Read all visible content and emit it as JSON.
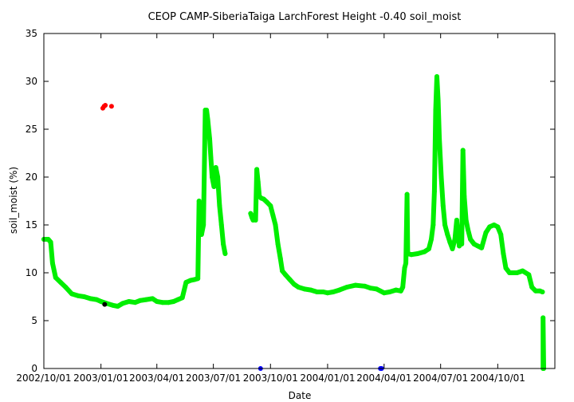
{
  "chart_data": {
    "type": "scatter",
    "title": "CEOP CAMP-SiberiaTaiga LarchForest Height -0.40 soil_moist",
    "xlabel": "Date",
    "ylabel": "soil_moist (%)",
    "x_range": [
      "2002-10-01",
      "2005-01-01"
    ],
    "ylim": [
      0,
      35
    ],
    "grid": false,
    "legend": "none",
    "x_ticks": [
      {
        "date": "2002-10-01",
        "label": "2002/10/01"
      },
      {
        "date": "2003-01-01",
        "label": "2003/01/01"
      },
      {
        "date": "2003-04-01",
        "label": "2003/04/01"
      },
      {
        "date": "2003-07-01",
        "label": "2003/07/01"
      },
      {
        "date": "2003-10-01",
        "label": "2003/10/01"
      },
      {
        "date": "2004-01-01",
        "label": "2004/01/01"
      },
      {
        "date": "2004-04-01",
        "label": "2004/04/01"
      },
      {
        "date": "2004-07-01",
        "label": "2004/07/01"
      },
      {
        "date": "2004-10-01",
        "label": "2004/10/01"
      }
    ],
    "y_ticks": [
      0,
      5,
      10,
      15,
      20,
      25,
      30,
      35
    ],
    "series": [
      {
        "color": "#00ee00",
        "segments": [
          [
            [
              "2002-10-01",
              13.5
            ],
            [
              "2002-10-08",
              13.5
            ],
            [
              "2002-10-12",
              13.2
            ],
            [
              "2002-10-15",
              11.0
            ],
            [
              "2002-10-20",
              9.5
            ],
            [
              "2002-10-28",
              9.0
            ],
            [
              "2002-11-05",
              8.5
            ],
            [
              "2002-11-15",
              7.8
            ],
            [
              "2002-11-25",
              7.6
            ],
            [
              "2002-12-05",
              7.5
            ],
            [
              "2002-12-15",
              7.3
            ],
            [
              "2002-12-25",
              7.2
            ],
            [
              "2003-01-01",
              7.0
            ],
            [
              "2003-01-10",
              6.8
            ],
            [
              "2003-01-20",
              6.6
            ],
            [
              "2003-01-28",
              6.5
            ],
            [
              "2003-02-05",
              6.8
            ],
            [
              "2003-02-15",
              7.0
            ],
            [
              "2003-02-25",
              6.9
            ],
            [
              "2003-03-05",
              7.1
            ],
            [
              "2003-03-15",
              7.2
            ],
            [
              "2003-03-25",
              7.3
            ],
            [
              "2003-04-01",
              7.0
            ],
            [
              "2003-04-10",
              6.9
            ],
            [
              "2003-04-20",
              6.9
            ],
            [
              "2003-04-28",
              7.0
            ],
            [
              "2003-05-05",
              7.2
            ],
            [
              "2003-05-12",
              7.4
            ],
            [
              "2003-05-18",
              9.0
            ],
            [
              "2003-05-25",
              9.2
            ],
            [
              "2003-06-01",
              9.3
            ],
            [
              "2003-06-06",
              9.4
            ],
            [
              "2003-06-08",
              17.5
            ],
            [
              "2003-06-10",
              15.0
            ],
            [
              "2003-06-12",
              14.0
            ],
            [
              "2003-06-15",
              15.0
            ],
            [
              "2003-06-18",
              27.0
            ],
            [
              "2003-06-20",
              27.0
            ],
            [
              "2003-06-22",
              26.0
            ],
            [
              "2003-06-25",
              24.0
            ],
            [
              "2003-06-27",
              22.0
            ],
            [
              "2003-06-29",
              20.0
            ],
            [
              "2003-07-02",
              19.0
            ],
            [
              "2003-07-05",
              21.0
            ],
            [
              "2003-07-08",
              20.0
            ],
            [
              "2003-07-11",
              17.0
            ],
            [
              "2003-07-14",
              15.0
            ],
            [
              "2003-07-17",
              13.0
            ],
            [
              "2003-07-20",
              12.0
            ]
          ],
          [
            [
              "2003-08-30",
              16.2
            ],
            [
              "2003-09-01",
              15.8
            ],
            [
              "2003-09-03",
              15.5
            ],
            [
              "2003-09-05",
              16.0
            ],
            [
              "2003-09-07",
              15.5
            ],
            [
              "2003-09-09",
              20.8
            ],
            [
              "2003-09-11",
              19.5
            ],
            [
              "2003-09-13",
              18.0
            ],
            [
              "2003-09-16",
              17.8
            ],
            [
              "2003-09-20",
              17.7
            ],
            [
              "2003-09-25",
              17.4
            ],
            [
              "2003-10-01",
              17.0
            ],
            [
              "2003-10-05",
              16.0
            ],
            [
              "2003-10-09",
              15.0
            ],
            [
              "2003-10-13",
              13.0
            ],
            [
              "2003-10-17",
              11.5
            ],
            [
              "2003-10-20",
              10.2
            ],
            [
              "2003-10-25",
              9.8
            ],
            [
              "2003-11-01",
              9.3
            ],
            [
              "2003-11-08",
              8.8
            ],
            [
              "2003-11-15",
              8.5
            ],
            [
              "2003-11-25",
              8.3
            ],
            [
              "2003-12-05",
              8.2
            ],
            [
              "2003-12-15",
              8.0
            ],
            [
              "2003-12-25",
              8.0
            ],
            [
              "2004-01-01",
              7.9
            ],
            [
              "2004-01-10",
              8.0
            ],
            [
              "2004-01-20",
              8.2
            ],
            [
              "2004-02-01",
              8.5
            ],
            [
              "2004-02-15",
              8.7
            ],
            [
              "2004-03-01",
              8.6
            ],
            [
              "2004-03-10",
              8.4
            ],
            [
              "2004-03-20",
              8.3
            ],
            [
              "2004-04-01",
              7.9
            ],
            [
              "2004-04-10",
              8.0
            ],
            [
              "2004-04-20",
              8.2
            ],
            [
              "2004-04-28",
              8.1
            ],
            [
              "2004-05-01",
              8.5
            ],
            [
              "2004-05-04",
              10.5
            ],
            [
              "2004-05-06",
              11.0
            ],
            [
              "2004-05-08",
              18.2
            ],
            [
              "2004-05-09",
              12.0
            ],
            [
              "2004-05-15",
              11.9
            ],
            [
              "2004-05-25",
              12.0
            ],
            [
              "2004-06-05",
              12.2
            ],
            [
              "2004-06-12",
              12.5
            ],
            [
              "2004-06-16",
              13.5
            ],
            [
              "2004-06-19",
              15.0
            ],
            [
              "2004-06-21",
              18.5
            ],
            [
              "2004-06-23",
              27.0
            ],
            [
              "2004-06-25",
              30.5
            ],
            [
              "2004-06-27",
              28.0
            ],
            [
              "2004-06-29",
              24.0
            ],
            [
              "2004-07-02",
              20.0
            ],
            [
              "2004-07-05",
              17.0
            ],
            [
              "2004-07-08",
              15.0
            ],
            [
              "2004-07-12",
              14.0
            ],
            [
              "2004-07-16",
              13.2
            ],
            [
              "2004-07-20",
              12.5
            ],
            [
              "2004-07-24",
              13.5
            ],
            [
              "2004-07-27",
              15.5
            ],
            [
              "2004-07-29",
              14.0
            ],
            [
              "2004-07-31",
              12.8
            ],
            [
              "2004-08-02",
              14.5
            ],
            [
              "2004-08-04",
              13.0
            ],
            [
              "2004-08-06",
              22.8
            ],
            [
              "2004-08-08",
              18.0
            ],
            [
              "2004-08-11",
              15.5
            ],
            [
              "2004-08-14",
              14.5
            ],
            [
              "2004-08-18",
              13.5
            ],
            [
              "2004-08-24",
              13.0
            ],
            [
              "2004-08-30",
              12.8
            ],
            [
              "2004-09-05",
              12.6
            ],
            [
              "2004-09-12",
              14.2
            ],
            [
              "2004-09-18",
              14.8
            ],
            [
              "2004-09-25",
              15.0
            ],
            [
              "2004-10-01",
              14.8
            ],
            [
              "2004-10-06",
              14.0
            ],
            [
              "2004-10-10",
              12.0
            ],
            [
              "2004-10-14",
              10.5
            ],
            [
              "2004-10-20",
              10.0
            ],
            [
              "2004-11-01",
              10.0
            ],
            [
              "2004-11-10",
              10.2
            ],
            [
              "2004-11-20",
              9.8
            ],
            [
              "2004-11-25",
              8.5
            ],
            [
              "2004-12-01",
              8.1
            ],
            [
              "2004-12-08",
              8.1
            ],
            [
              "2004-12-12",
              8.0
            ]
          ],
          [
            [
              "2004-12-13",
              0.0
            ],
            [
              "2004-12-13",
              5.3
            ],
            [
              "2004-12-14",
              0.0
            ]
          ]
        ]
      },
      {
        "color": "#ff0000",
        "points": [
          [
            "2003-01-04",
            27.2
          ],
          [
            "2003-01-06",
            27.4
          ],
          [
            "2003-01-08",
            27.5
          ],
          [
            "2003-01-18",
            27.4
          ]
        ]
      },
      {
        "color": "#000000",
        "points": [
          [
            "2003-01-07",
            6.7
          ]
        ]
      },
      {
        "color": "#0000ff",
        "points": [
          [
            "2003-09-15",
            0.0
          ],
          [
            "2004-03-26",
            0.0
          ],
          [
            "2004-03-28",
            0.0
          ]
        ]
      }
    ]
  }
}
